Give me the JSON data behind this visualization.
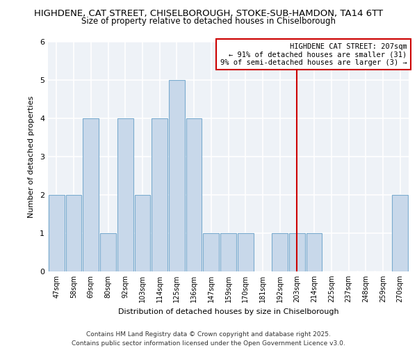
{
  "title1": "HIGHDENE, CAT STREET, CHISELBOROUGH, STOKE-SUB-HAMDON, TA14 6TT",
  "title2": "Size of property relative to detached houses in Chiselborough",
  "xlabel": "Distribution of detached houses by size in Chiselborough",
  "ylabel": "Number of detached properties",
  "categories": [
    "47sqm",
    "58sqm",
    "69sqm",
    "80sqm",
    "92sqm",
    "103sqm",
    "114sqm",
    "125sqm",
    "136sqm",
    "147sqm",
    "159sqm",
    "170sqm",
    "181sqm",
    "192sqm",
    "203sqm",
    "214sqm",
    "225sqm",
    "237sqm",
    "248sqm",
    "259sqm",
    "270sqm"
  ],
  "values": [
    2,
    2,
    4,
    1,
    4,
    2,
    4,
    5,
    4,
    1,
    1,
    1,
    0,
    1,
    1,
    1,
    0,
    0,
    0,
    0,
    2
  ],
  "bar_color": "#c8d8ea",
  "bar_edge_color": "#7aabcf",
  "vline_x_index": 14,
  "vline_color": "#cc0000",
  "annotation_title": "HIGHDENE CAT STREET: 207sqm",
  "annotation_line1": "← 91% of detached houses are smaller (31)",
  "annotation_line2": "9% of semi-detached houses are larger (3) →",
  "annotation_box_color": "#cc0000",
  "ylim": [
    0,
    6
  ],
  "yticks": [
    0,
    1,
    2,
    3,
    4,
    5,
    6
  ],
  "footer1": "Contains HM Land Registry data © Crown copyright and database right 2025.",
  "footer2": "Contains public sector information licensed under the Open Government Licence v3.0.",
  "bg_color": "#eef2f7",
  "grid_color": "#ffffff",
  "title1_fontsize": 9.5,
  "title2_fontsize": 8.5,
  "annotation_fontsize": 7.5,
  "footer_fontsize": 6.5
}
